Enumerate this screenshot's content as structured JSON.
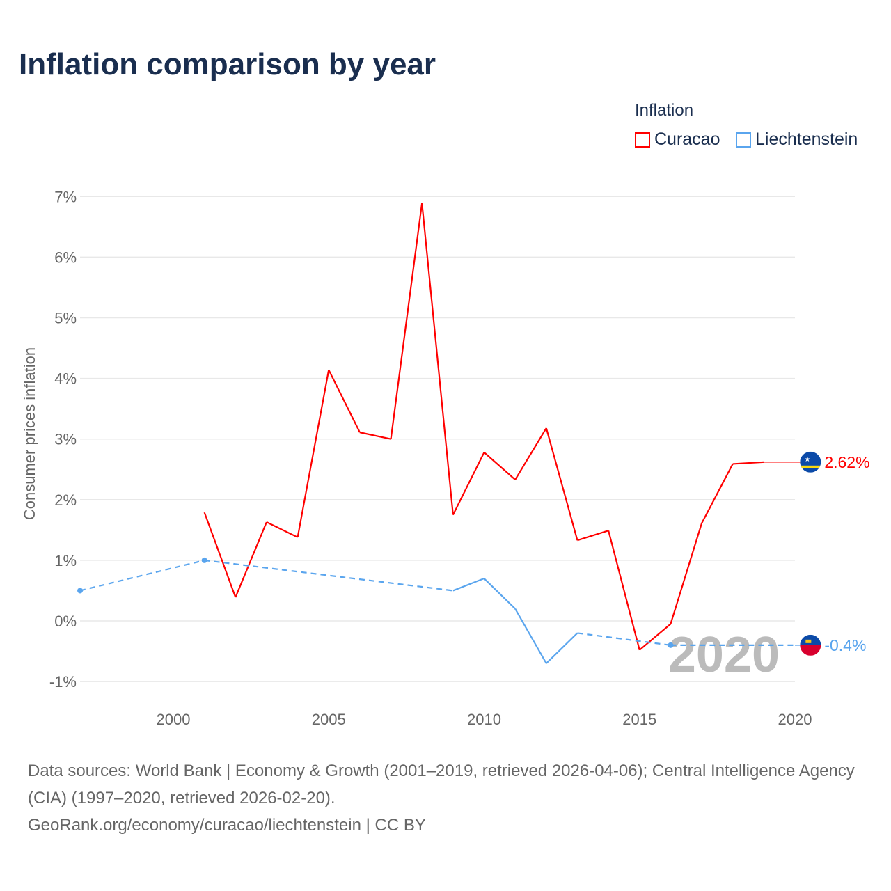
{
  "chart_data": {
    "type": "line",
    "title": "Inflation comparison by year",
    "ylabel": "Consumer prices inflation",
    "xlabel": "",
    "ylim": [
      -1,
      7
    ],
    "xlim": [
      1997,
      2020
    ],
    "yticks": [
      "7%",
      "6%",
      "5%",
      "4%",
      "3%",
      "2%",
      "1%",
      "0%",
      "-1%"
    ],
    "ytick_values": [
      7,
      6,
      5,
      4,
      3,
      2,
      1,
      0,
      -1
    ],
    "xticks": [
      "2000",
      "2005",
      "2010",
      "2015",
      "2020"
    ],
    "xtick_values": [
      2000,
      2005,
      2010,
      2015,
      2020
    ],
    "legend_title": "Inflation",
    "legend_position": "top-right",
    "watermark_year": "2020",
    "series": [
      {
        "name": "Curacao",
        "color": "#ff0000",
        "end_label": "2.62%",
        "end_value": 2.62,
        "points": [
          [
            2001,
            1.79
          ],
          [
            2002,
            0.39
          ],
          [
            2003,
            1.63
          ],
          [
            2004,
            1.38
          ],
          [
            2005,
            4.14
          ],
          [
            2006,
            3.11
          ],
          [
            2007,
            3.0
          ],
          [
            2008,
            6.89
          ],
          [
            2009,
            1.75
          ],
          [
            2010,
            2.78
          ],
          [
            2011,
            2.33
          ],
          [
            2012,
            3.18
          ],
          [
            2013,
            1.33
          ],
          [
            2014,
            1.49
          ],
          [
            2015,
            -0.48
          ],
          [
            2016,
            -0.05
          ],
          [
            2017,
            1.61
          ],
          [
            2018,
            2.59
          ],
          [
            2019,
            2.62
          ]
        ]
      },
      {
        "name": "Liechtenstein",
        "color": "#5aa5ee",
        "end_label": "-0.4%",
        "end_value": -0.4,
        "points": [
          [
            1997,
            0.5
          ],
          [
            2001,
            1.0
          ],
          [
            2009,
            0.5
          ],
          [
            2010,
            0.7
          ],
          [
            2011,
            0.2
          ],
          [
            2012,
            -0.7
          ],
          [
            2013,
            -0.2
          ],
          [
            2016,
            -0.4
          ],
          [
            2020,
            -0.4
          ]
        ]
      }
    ]
  },
  "footer": {
    "sources": "Data sources: World Bank | Economy & Growth (2001–2019, retrieved 2026-04-06); Central Intelligence Agency (CIA) (1997–2020, retrieved 2026-02-20).",
    "credit": "GeoRank.org/economy/curacao/liechtenstein | CC BY"
  }
}
